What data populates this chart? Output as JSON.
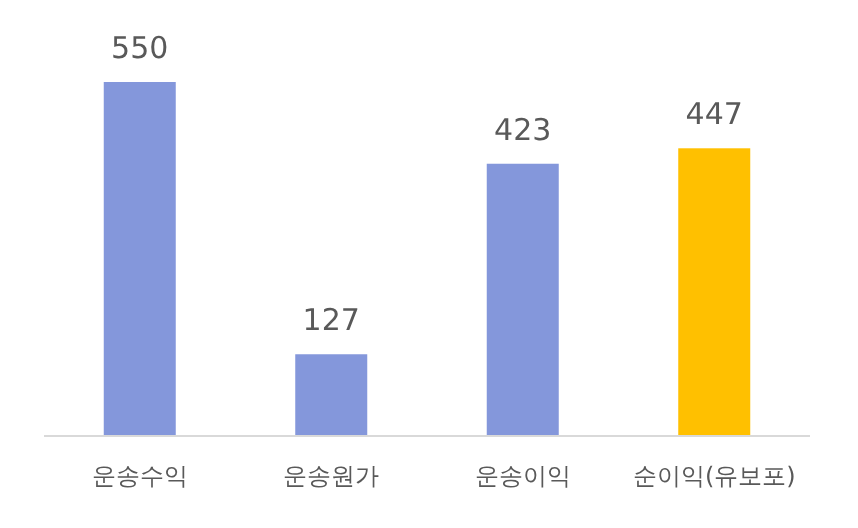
{
  "chart_data": {
    "type": "bar",
    "categories": [
      "운송수익",
      "운송원가",
      "운송이익",
      "순이익(유보포)"
    ],
    "values": [
      550,
      127,
      423,
      447
    ],
    "colors": [
      "#8497db",
      "#8497db",
      "#8497db",
      "#ffc000"
    ],
    "data_labels": true
  }
}
